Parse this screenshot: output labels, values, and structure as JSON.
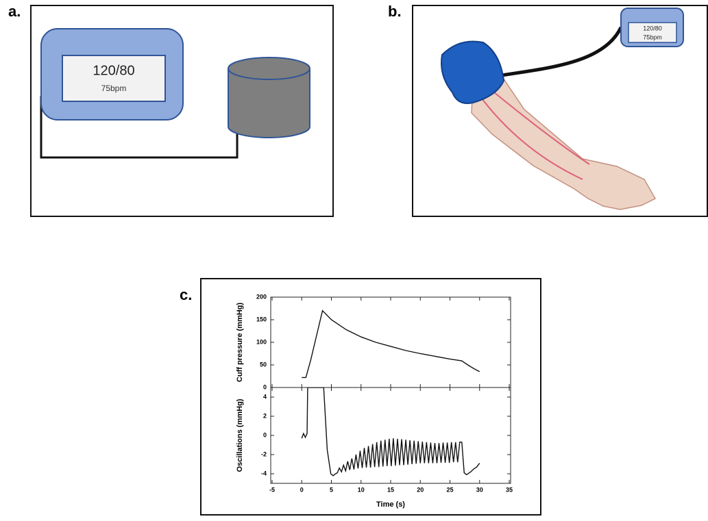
{
  "panels": {
    "a": {
      "label": "a.",
      "display": {
        "reading": "120/80",
        "pulse": "75bpm"
      }
    },
    "b": {
      "label": "b.",
      "display": {
        "reading": "120/80",
        "pulse": "75bpm"
      }
    },
    "c": {
      "label": "c."
    }
  },
  "chart_data": [
    {
      "type": "line",
      "ylabel": "Cuff pressure (mmHg)",
      "color": "#111111",
      "x": [
        0,
        0.7,
        1.5,
        2.5,
        3.5,
        5,
        7.5,
        10,
        12.5,
        15,
        17.5,
        20,
        22.5,
        25,
        27,
        28,
        29,
        30
      ],
      "values": [
        22,
        22,
        60,
        115,
        170,
        150,
        128,
        112,
        100,
        91,
        82,
        75,
        69,
        63,
        59,
        50,
        42,
        35
      ],
      "xlim": [
        -5,
        35
      ],
      "xticks": [
        -5,
        0,
        5,
        10,
        15,
        20,
        25,
        30,
        35
      ],
      "ylim": [
        0,
        200
      ],
      "yticks": [
        0,
        50,
        100,
        150,
        200
      ]
    },
    {
      "type": "line",
      "ylabel": "Oscillations (mmHg)",
      "xlabel": "Time (s)",
      "color": "#111111",
      "x": [
        0,
        0.3,
        0.6,
        0.9,
        1.0,
        3.7,
        4.3,
        4.9,
        5.3,
        5.7,
        6.0,
        6.35,
        6.7,
        7.05,
        7.4,
        7.75,
        8.1,
        8.45,
        8.8,
        9.15,
        9.5,
        9.85,
        10.2,
        10.55,
        10.9,
        11.25,
        11.6,
        11.95,
        12.3,
        12.65,
        13.0,
        13.35,
        13.7,
        14.05,
        14.4,
        14.75,
        15.1,
        15.45,
        15.8,
        16.15,
        16.5,
        16.85,
        17.2,
        17.55,
        17.9,
        18.25,
        18.6,
        18.95,
        19.3,
        19.65,
        20.0,
        20.35,
        20.7,
        21.05,
        21.4,
        21.75,
        22.1,
        22.45,
        22.8,
        23.15,
        23.5,
        23.85,
        24.2,
        24.55,
        24.9,
        25.25,
        25.6,
        25.95,
        26.3,
        26.65,
        27.0,
        27.4,
        27.8,
        28.5,
        29,
        29.5,
        30
      ],
      "values": [
        -0.3,
        0.2,
        -0.2,
        0.2,
        5,
        5,
        -1.5,
        -4.0,
        -4.2,
        -4.0,
        -3.9,
        -3.4,
        -3.8,
        -3.1,
        -3.7,
        -2.7,
        -3.6,
        -2.4,
        -3.55,
        -2.0,
        -3.45,
        -1.6,
        -3.4,
        -1.3,
        -3.35,
        -1.1,
        -3.35,
        -0.9,
        -3.3,
        -0.7,
        -3.3,
        -0.55,
        -3.25,
        -0.45,
        -3.2,
        -0.35,
        -3.2,
        -0.3,
        -3.15,
        -0.35,
        -3.1,
        -0.4,
        -3.1,
        -0.45,
        -3.05,
        -0.5,
        -3.0,
        -0.55,
        -2.95,
        -0.6,
        -2.9,
        -0.65,
        -2.9,
        -0.7,
        -2.9,
        -0.75,
        -2.9,
        -0.8,
        -2.9,
        -0.8,
        -2.85,
        -0.75,
        -2.85,
        -0.75,
        -2.85,
        -0.7,
        -2.8,
        -0.7,
        -2.8,
        -0.7,
        -0.7,
        -3.9,
        -4.1,
        -3.8,
        -3.5,
        -3.3,
        -2.9
      ],
      "xlim": [
        -5,
        35
      ],
      "xticks": [
        -5,
        0,
        5,
        10,
        15,
        20,
        25,
        30,
        35
      ],
      "ylim": [
        -5,
        5
      ],
      "yticks": [
        -4,
        -2,
        0,
        2,
        4
      ]
    }
  ]
}
